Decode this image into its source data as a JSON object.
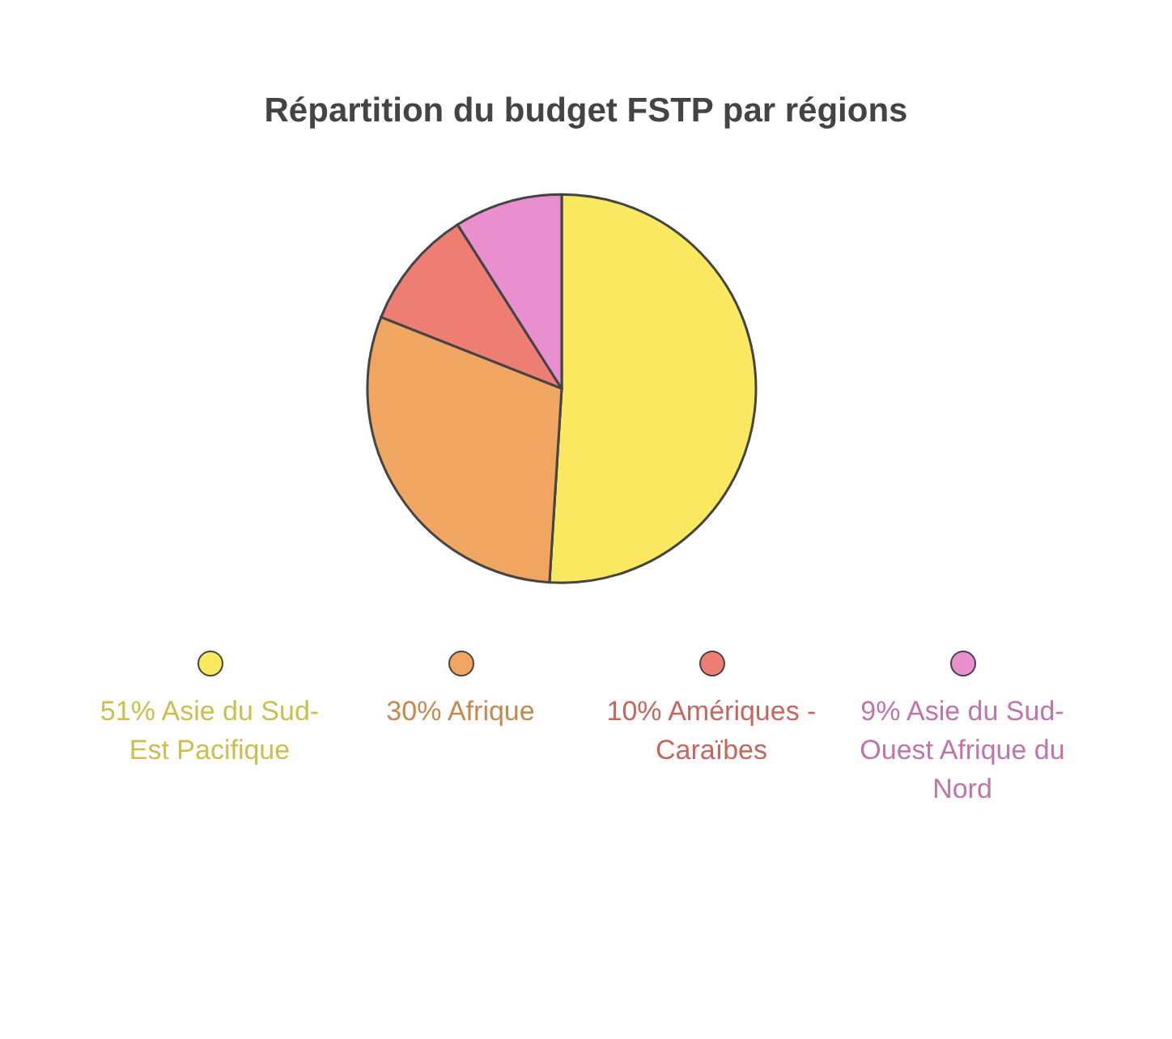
{
  "chart_data": {
    "type": "pie",
    "title": "Répartition du budget FSTP par régions",
    "categories": [
      "Asie du Sud-Est Pacifique",
      "Afrique",
      "Amériques - Caraïbes",
      "Asie du Sud-Ouest Afrique du Nord"
    ],
    "values": [
      51,
      30,
      10,
      9
    ],
    "value_labels": [
      "51%",
      "30%",
      "10%",
      "9%"
    ],
    "colors": [
      "#f9e860",
      "#f0a660",
      "#ee7d74",
      "#e98fd0"
    ],
    "legend": "bottom"
  }
}
